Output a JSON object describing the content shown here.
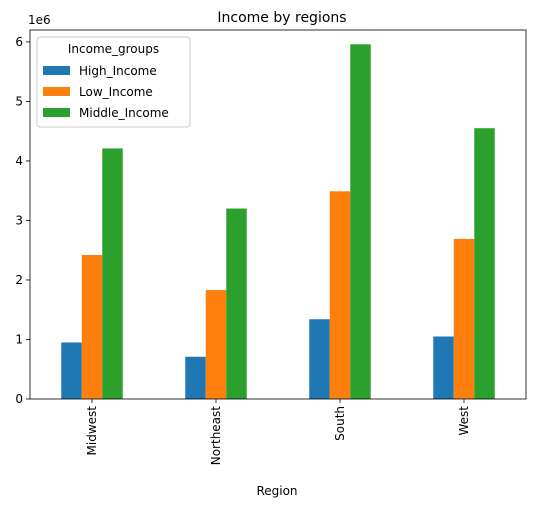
{
  "chart_data": {
    "type": "bar",
    "title": "Income by regions",
    "xlabel": "Region",
    "ylabel": "",
    "y_offset_label": "1e6",
    "categories": [
      "Midwest",
      "Northeast",
      "South",
      "West"
    ],
    "yticks": [
      "0",
      "1",
      "2",
      "3",
      "4",
      "5",
      "6"
    ],
    "ylim": [
      0,
      6.2
    ],
    "legend": {
      "title": "Income_groups",
      "position": "top-left"
    },
    "series": [
      {
        "name": "High_Income",
        "color": "#1f77b4",
        "values": [
          0.95,
          0.71,
          1.34,
          1.05
        ]
      },
      {
        "name": "Low_Income",
        "color": "#ff7f0e",
        "values": [
          2.42,
          1.83,
          3.49,
          2.69
        ]
      },
      {
        "name": "Middle_Income",
        "color": "#2ca02c",
        "values": [
          4.21,
          3.2,
          5.96,
          4.55
        ]
      }
    ],
    "grid": false
  }
}
